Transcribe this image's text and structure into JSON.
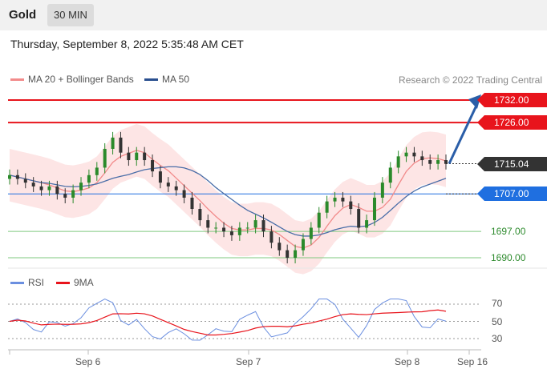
{
  "header": {
    "asset": "Gold",
    "timeframe": "30 MIN"
  },
  "datetime": "Thursday, September 8, 2022 5:35:48 AM CET",
  "legend": {
    "ma20_label": "MA 20 + Bollinger Bands",
    "ma50_label": "MA 50",
    "credit": "Research © 2022 Trading Central"
  },
  "levels": {
    "r2": "1732.00",
    "r1": "1726.00",
    "last": "1715.04",
    "pivot": "1707.00",
    "s1": "1697.00",
    "s2": "1690.00"
  },
  "rsi_legend": {
    "rsi": "RSI",
    "ma9": "9MA"
  },
  "rsi_levels": {
    "top": "70",
    "mid": "50",
    "bot": "30"
  },
  "x_axis": {
    "d1": "Sep 6",
    "d2": "Sep 7",
    "d3": "Sep 8",
    "d4": "Sep 16"
  },
  "colors": {
    "resistance": "#e8141c",
    "pivot": "#1f6fe0",
    "support": "#7fc97f",
    "ma20": "#f28b8b",
    "ma50": "#4a6ea8",
    "band": "#fde0e0",
    "candle_up": "#2b8a2b",
    "candle_down": "#333333",
    "arrow": "#2a5ea8"
  },
  "chart_data": {
    "type": "candlestick",
    "y_range": [
      1686,
      1738
    ],
    "price_series_approx": [
      1712,
      1711,
      1710,
      1709,
      1708,
      1709,
      1707,
      1706,
      1708,
      1710,
      1712,
      1714,
      1719,
      1722,
      1718,
      1716,
      1718,
      1716,
      1713,
      1710,
      1709,
      1708,
      1706,
      1703,
      1700,
      1698,
      1698,
      1697,
      1696,
      1698,
      1698,
      1700,
      1697,
      1694,
      1692,
      1690,
      1692,
      1695,
      1698,
      1702,
      1705,
      1706,
      1705,
      1703,
      1698,
      1700,
      1706,
      1710,
      1714,
      1717,
      1718,
      1717,
      1716,
      1715,
      1716,
      1715
    ],
    "rsi_range": [
      20,
      80
    ],
    "rsi_levels": [
      70,
      50,
      30
    ]
  }
}
